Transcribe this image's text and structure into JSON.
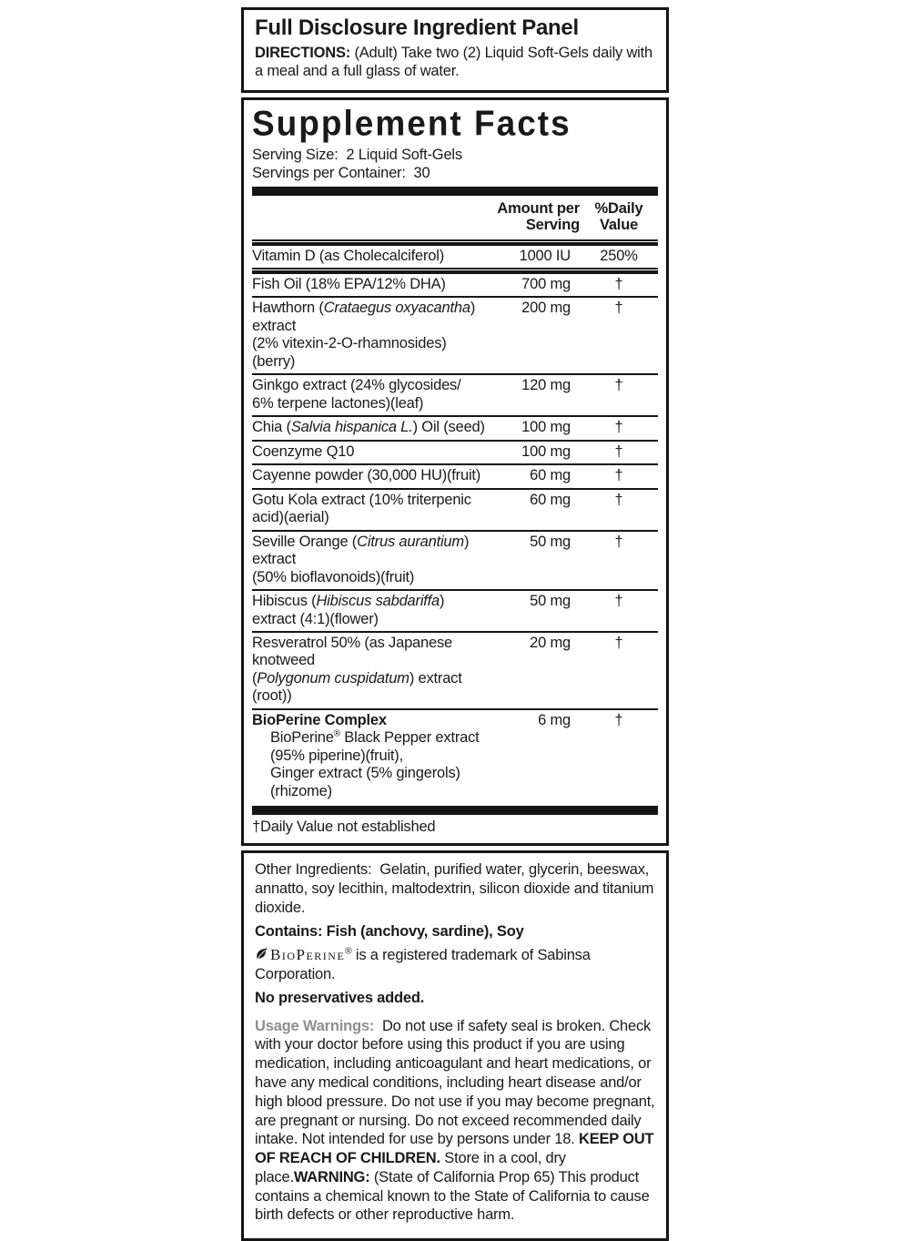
{
  "colors": {
    "text_black": "#1a1a1a",
    "border_black": "#151515",
    "warning_label_gray": "#8e8e8e",
    "background": "#ffffff"
  },
  "icons": {
    "bioperine_leaf": "leaf-icon"
  },
  "panel1": {
    "title": "Full Disclosure Ingredient Panel",
    "directions": [
      {
        "t": "DIRECTIONS: ",
        "b": true
      },
      {
        "t": "(Adult) Take two (2) Liquid Soft-Gels daily with a meal and a full glass of water."
      }
    ]
  },
  "supplement": {
    "title": "Supplement Facts",
    "serving_size": "Serving Size:  2 Liquid Soft-Gels",
    "servings_per_container": "Servings per Container:  30",
    "header": {
      "amount_line1": "Amount per",
      "amount_line2": "Serving",
      "dv_line1": "%Daily",
      "dv_line2": "Value"
    },
    "rows": [
      {
        "lines": [
          [
            {
              "t": "Vitamin D (as Cholecalciferol)"
            }
          ]
        ],
        "amount": "1000 IU",
        "dv": "250%",
        "sep": "none"
      },
      {
        "lines": [
          [
            {
              "t": "Fish Oil (18% EPA/12% DHA)"
            }
          ]
        ],
        "amount": "700 mg",
        "dv": "†",
        "sep": "med"
      },
      {
        "lines": [
          [
            {
              "t": "Hawthorn ("
            },
            {
              "t": "Crataegus oxyacantha",
              "i": true
            },
            {
              "t": ") extract"
            }
          ],
          [
            {
              "t": "(2% vitexin-2-O-rhamnosides)(berry)"
            }
          ]
        ],
        "amount": "200 mg",
        "dv": "†",
        "sep": "thin"
      },
      {
        "lines": [
          [
            {
              "t": "Ginkgo extract (24% glycosides/"
            }
          ],
          [
            {
              "t": "6% terpene lactones)(leaf)"
            }
          ]
        ],
        "amount": "120 mg",
        "dv": "†",
        "sep": "thin"
      },
      {
        "lines": [
          [
            {
              "t": "Chia ("
            },
            {
              "t": "Salvia hispanica L.",
              "i": true
            },
            {
              "t": ") Oil (seed)"
            }
          ]
        ],
        "amount": "100 mg",
        "dv": "†",
        "sep": "thin"
      },
      {
        "lines": [
          [
            {
              "t": "Coenzyme Q10"
            }
          ]
        ],
        "amount": "100 mg",
        "dv": "†",
        "sep": "thin"
      },
      {
        "lines": [
          [
            {
              "t": "Cayenne powder (30,000 HU)(fruit)"
            }
          ]
        ],
        "amount": "60 mg",
        "dv": "†",
        "sep": "thin"
      },
      {
        "lines": [
          [
            {
              "t": "Gotu Kola extract (10% triterpenic acid)(aerial)"
            }
          ]
        ],
        "amount": "60 mg",
        "dv": "†",
        "sep": "thin"
      },
      {
        "lines": [
          [
            {
              "t": "Seville Orange ("
            },
            {
              "t": "Citrus aurantium",
              "i": true
            },
            {
              "t": ") extract"
            }
          ],
          [
            {
              "t": "(50% bioflavonoids)(fruit)"
            }
          ]
        ],
        "amount": "50 mg",
        "dv": "†",
        "sep": "thin"
      },
      {
        "lines": [
          [
            {
              "t": "Hibiscus ("
            },
            {
              "t": "Hibiscus sabdariffa",
              "i": true
            },
            {
              "t": ") extract (4:1)(flower)"
            }
          ]
        ],
        "amount": "50 mg",
        "dv": "†",
        "sep": "thin"
      },
      {
        "lines": [
          [
            {
              "t": "Resveratrol 50% (as Japanese knotweed"
            }
          ],
          [
            {
              "t": "(",
              "noital": true
            },
            {
              "t": "Polygonum cuspidatum",
              "i": true
            },
            {
              "t": ") extract (root))"
            }
          ]
        ],
        "amount": "20 mg",
        "dv": "†",
        "sep": "thin"
      },
      {
        "bold": true,
        "lines": [
          [
            {
              "t": "BioPerine Complex"
            }
          ]
        ],
        "subs": [
          [
            {
              "t": "BioPerine"
            },
            {
              "t": "®",
              "sup": true
            },
            {
              "t": " Black Pepper extract (95% piperine)(fruit),"
            }
          ],
          [
            {
              "t": "Ginger extract (5% gingerols)(rhizome)"
            }
          ]
        ],
        "amount": "6 mg",
        "dv": "†",
        "sep": "thin"
      }
    ],
    "footnote": "†Daily Value not established"
  },
  "other": {
    "other_ingredients": "Other Ingredients:  Gelatin, purified water, glycerin, beeswax, annatto, soy lecithin, maltodextrin, silicon dioxide and titanium dioxide.",
    "contains": "Contains: Fish (anchovy, sardine), Soy",
    "bioperine_trademark": [
      {
        "t": "BioPerine",
        "sc": true
      },
      {
        "t": "®",
        "sup": true
      },
      {
        "t": " is a registered trademark of Sabinsa Corporation."
      }
    ],
    "no_preservatives": "No preservatives added.",
    "warnings": [
      {
        "t": "Usage Warnings:  ",
        "b": true,
        "gray": true
      },
      {
        "t": "Do not use if safety seal is broken. Check with your doctor before using this product if you are using medication, including anticoagulant and heart medications, or have any medical conditions, including heart disease and/or high blood pressure. Do not use if you may become pregnant, are pregnant or nursing. Do not exceed recommended daily intake. Not intended for use by persons under 18. "
      },
      {
        "t": "KEEP OUT OF REACH OF CHILDREN.",
        "b": true
      },
      {
        "t": " Store in a cool, dry place."
      },
      {
        "t": "WARNING:",
        "b": true
      },
      {
        "t": " (State of California Prop 65) This product contains a chemical known to the State of California to cause birth defects or other reproductive harm."
      }
    ]
  }
}
